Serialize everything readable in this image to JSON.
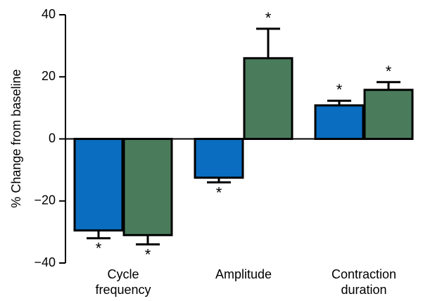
{
  "chart_data": {
    "type": "bar",
    "categories": [
      [
        "Cycle",
        "frequency"
      ],
      [
        "Amplitude"
      ],
      [
        "Contraction",
        "duration"
      ]
    ],
    "series": [
      {
        "color": "#0a6dbf",
        "values": [
          -29.5,
          -12.5,
          10.8
        ],
        "errors": [
          2.5,
          1.5,
          1.5
        ]
      },
      {
        "color": "#4a7c5c",
        "values": [
          -31,
          26,
          15.8
        ],
        "errors": [
          3,
          9.5,
          2.5
        ]
      }
    ],
    "significance": [
      [
        "*",
        "*",
        "*"
      ],
      [
        "*",
        "*",
        "*"
      ]
    ],
    "ylabel": "% Change from baseline",
    "ylim": [
      -40,
      40
    ],
    "yticks": [
      40,
      20,
      0,
      -20,
      -40
    ],
    "ytick_labels": [
      "40",
      "20",
      "0",
      "−20",
      "−40"
    ],
    "grid": false,
    "legend": "none"
  }
}
